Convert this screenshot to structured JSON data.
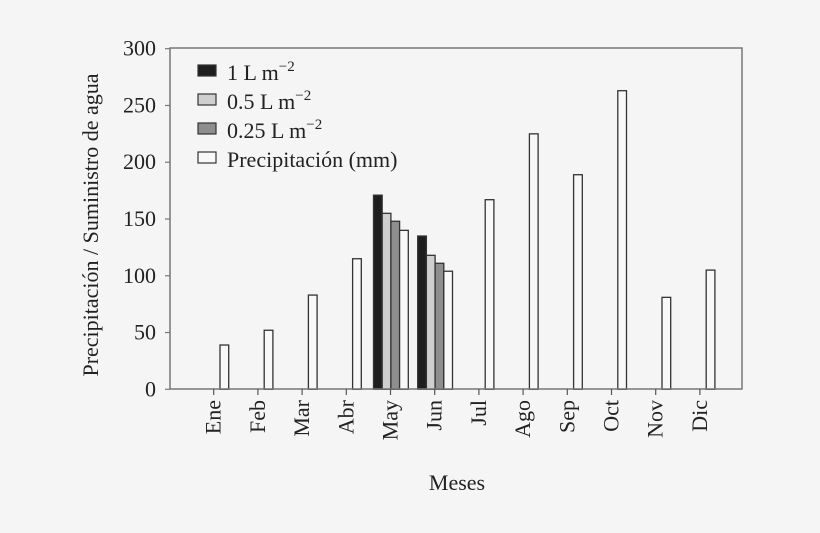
{
  "chart_data": {
    "type": "bar",
    "xlabel": "Meses",
    "ylabel": "Precipitación / Suministro de agua",
    "ylim": [
      0,
      300
    ],
    "yticks": [
      "0",
      "50",
      "100",
      "150",
      "200",
      "250",
      "300"
    ],
    "categories": [
      "Ene",
      "Feb",
      "Mar",
      "Abr",
      "May",
      "Jun",
      "Jul",
      "Ago",
      "Sep",
      "Oct",
      "Nov",
      "Dic"
    ],
    "legend_position": "top-left",
    "grid": false,
    "series": [
      {
        "name": "1 L m",
        "sup": "−2",
        "color": "#1e1e1e",
        "values": [
          null,
          null,
          null,
          null,
          171,
          135,
          null,
          null,
          null,
          null,
          null,
          null
        ]
      },
      {
        "name": "0.5 L m",
        "sup": "−2",
        "color": "#cfcfcf",
        "values": [
          null,
          null,
          null,
          null,
          155,
          118,
          null,
          null,
          null,
          null,
          null,
          null
        ]
      },
      {
        "name": "0.25 L m",
        "sup": "−2",
        "color": "#8e8e8e",
        "values": [
          null,
          null,
          null,
          null,
          148,
          111,
          null,
          null,
          null,
          null,
          null,
          null
        ]
      },
      {
        "name": "Precipitación (mm)",
        "sup": "",
        "color": "#f8f8f8",
        "values": [
          39,
          52,
          83,
          115,
          140,
          104,
          167,
          225,
          189,
          263,
          81,
          105
        ]
      }
    ]
  }
}
